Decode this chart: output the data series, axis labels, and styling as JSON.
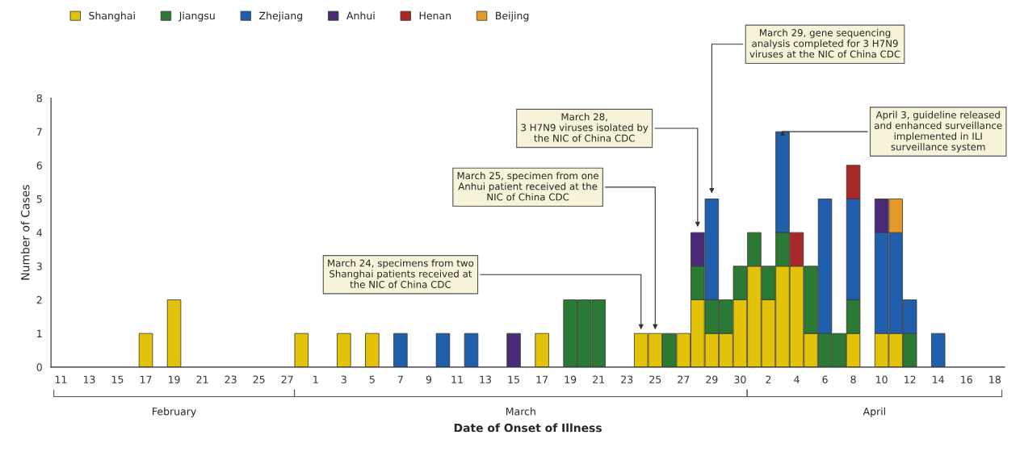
{
  "chart_data": {
    "type": "bar",
    "stacked": true,
    "xlabel": "Date of Onset of Illness",
    "ylabel": "Number of Cases",
    "categories": [
      "11",
      null,
      "13",
      null,
      "15",
      null,
      "17",
      null,
      "19",
      null,
      "21",
      null,
      "23",
      null,
      "25",
      null,
      "27",
      null,
      "1",
      null,
      "3",
      null,
      "5",
      null,
      "7",
      null,
      "9",
      null,
      "11",
      null,
      "13",
      null,
      "15",
      null,
      "17",
      null,
      "19",
      null,
      "21",
      null,
      "23",
      null,
      "25",
      null,
      "27",
      null,
      "29",
      null,
      "30",
      null,
      "2",
      null,
      "4",
      null,
      "6",
      null,
      "8",
      null,
      "10",
      null,
      "12",
      null,
      "14",
      null,
      "16",
      null,
      "18"
    ],
    "series": [
      {
        "name": "Shanghai",
        "color": "#e3c20a",
        "values": [
          null,
          null,
          null,
          null,
          null,
          null,
          1,
          null,
          2,
          null,
          null,
          null,
          null,
          null,
          null,
          null,
          null,
          1,
          null,
          null,
          1,
          null,
          1,
          null,
          null,
          null,
          null,
          null,
          null,
          null,
          null,
          null,
          null,
          null,
          1,
          null,
          null,
          null,
          null,
          null,
          null,
          1,
          1,
          null,
          1,
          2,
          1,
          1,
          2,
          3,
          2,
          3,
          3,
          1,
          null,
          null,
          1,
          null,
          1,
          1,
          null,
          null,
          null,
          null,
          null,
          null,
          null
        ]
      },
      {
        "name": "Jiangsu",
        "color": "#2a7a35",
        "values": [
          null,
          null,
          null,
          null,
          null,
          null,
          null,
          null,
          null,
          null,
          null,
          null,
          null,
          null,
          null,
          null,
          null,
          null,
          null,
          null,
          null,
          null,
          null,
          null,
          null,
          null,
          null,
          null,
          null,
          null,
          null,
          null,
          null,
          null,
          null,
          null,
          2,
          2,
          2,
          null,
          null,
          null,
          null,
          1,
          null,
          1,
          1,
          1,
          1,
          1,
          1,
          1,
          null,
          2,
          1,
          1,
          1,
          null,
          null,
          null,
          1,
          null,
          null,
          null,
          null,
          null,
          null
        ]
      },
      {
        "name": "Zhejiang",
        "color": "#1f5fae",
        "values": [
          null,
          null,
          null,
          null,
          null,
          null,
          null,
          null,
          null,
          null,
          null,
          null,
          null,
          null,
          null,
          null,
          null,
          null,
          null,
          null,
          null,
          null,
          null,
          null,
          1,
          null,
          null,
          1,
          null,
          1,
          null,
          null,
          null,
          null,
          null,
          null,
          null,
          null,
          null,
          null,
          null,
          null,
          null,
          null,
          null,
          null,
          3,
          null,
          null,
          null,
          null,
          3,
          null,
          null,
          4,
          null,
          3,
          null,
          3,
          3,
          1,
          null,
          1,
          null,
          null,
          null,
          null
        ]
      },
      {
        "name": "Anhui",
        "color": "#4b2a7a",
        "values": [
          null,
          null,
          null,
          null,
          null,
          null,
          null,
          null,
          null,
          null,
          null,
          null,
          null,
          null,
          null,
          null,
          null,
          null,
          null,
          null,
          null,
          null,
          null,
          null,
          null,
          null,
          null,
          null,
          null,
          null,
          null,
          null,
          1,
          null,
          null,
          null,
          null,
          null,
          null,
          null,
          null,
          null,
          null,
          null,
          null,
          1,
          null,
          null,
          null,
          null,
          null,
          null,
          null,
          null,
          null,
          null,
          null,
          null,
          1,
          null,
          null,
          null,
          null,
          null,
          null,
          null,
          null
        ]
      },
      {
        "name": "Henan",
        "color": "#a8272b",
        "values": [
          null,
          null,
          null,
          null,
          null,
          null,
          null,
          null,
          null,
          null,
          null,
          null,
          null,
          null,
          null,
          null,
          null,
          null,
          null,
          null,
          null,
          null,
          null,
          null,
          null,
          null,
          null,
          null,
          null,
          null,
          null,
          null,
          null,
          null,
          null,
          null,
          null,
          null,
          null,
          null,
          null,
          null,
          null,
          null,
          null,
          null,
          null,
          null,
          null,
          null,
          null,
          null,
          1,
          null,
          null,
          null,
          1,
          null,
          null,
          null,
          null,
          null,
          null,
          null,
          null,
          null,
          null
        ]
      },
      {
        "name": "Beijing",
        "color": "#e39a2a",
        "values": [
          null,
          null,
          null,
          null,
          null,
          null,
          null,
          null,
          null,
          null,
          null,
          null,
          null,
          null,
          null,
          null,
          null,
          null,
          null,
          null,
          null,
          null,
          null,
          null,
          null,
          null,
          null,
          null,
          null,
          null,
          null,
          null,
          null,
          null,
          null,
          null,
          null,
          null,
          null,
          null,
          null,
          null,
          null,
          null,
          null,
          null,
          null,
          null,
          null,
          null,
          null,
          null,
          null,
          null,
          null,
          null,
          null,
          null,
          null,
          1,
          null,
          null,
          null,
          null,
          null,
          null,
          null
        ]
      }
    ],
    "ylim": [
      0,
      8
    ],
    "yticks": [
      0,
      1,
      2,
      3,
      4,
      5,
      6,
      7,
      8
    ],
    "legend": "top left",
    "annotations": [
      "February",
      "March",
      "April",
      "March 24, specimens from two\nShanghai patients received at\nthe NIC of China CDC",
      "March 25, specimen from one\nAnhui patient received at the\nNIC of China CDC",
      "March 28,\n3 H7N9 viruses isolated by\nthe NIC of China CDC",
      "March 29, gene sequencing\nanalysis completed for 3 H7N9\nviruses at the NIC of China CDC",
      "April 3, guideline released\nand enhanced surveillance\nimplemented in ILI\nsurveillance system"
    ]
  }
}
